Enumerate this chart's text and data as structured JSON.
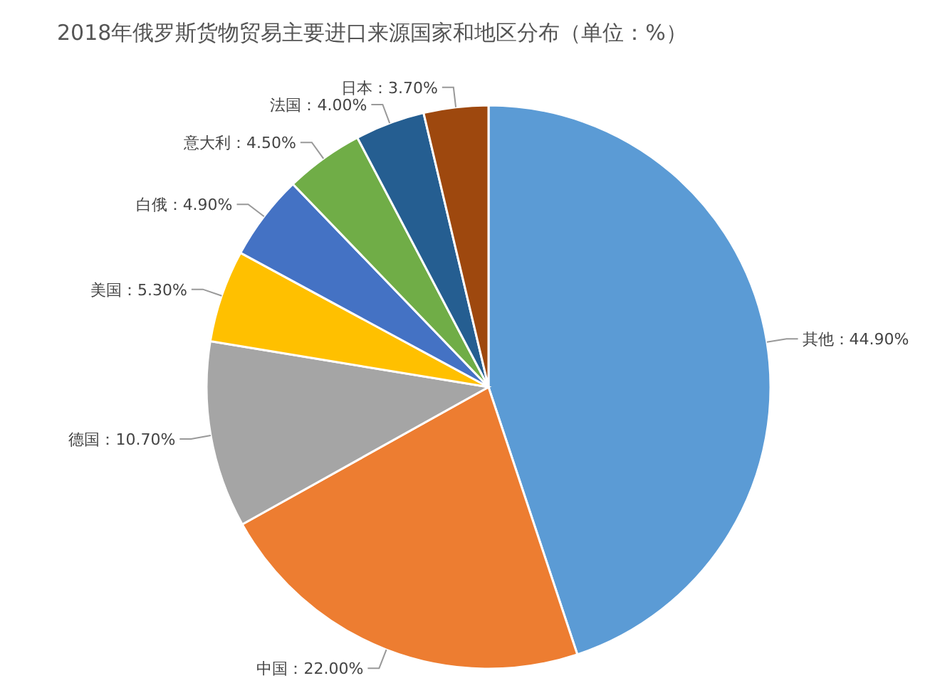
{
  "chart_data": {
    "type": "pie",
    "title": "2018年俄罗斯货物贸易主要进口来源国家和地区分布（单位：%）",
    "categories": [
      "其他",
      "中国",
      "德国",
      "美国",
      "白俄",
      "意大利",
      "法国",
      "日本"
    ],
    "values": [
      44.9,
      22.0,
      10.7,
      5.3,
      4.9,
      4.5,
      4.0,
      3.7
    ],
    "value_labels": [
      "44.90%",
      "22.00%",
      "10.70%",
      "5.30%",
      "4.90%",
      "4.50%",
      "4.00%",
      "3.70%"
    ],
    "colors": [
      "#5b9bd5",
      "#ed7d31",
      "#a5a5a5",
      "#ffc000",
      "#4472c4",
      "#70ad47",
      "#255e91",
      "#9e480e"
    ]
  }
}
